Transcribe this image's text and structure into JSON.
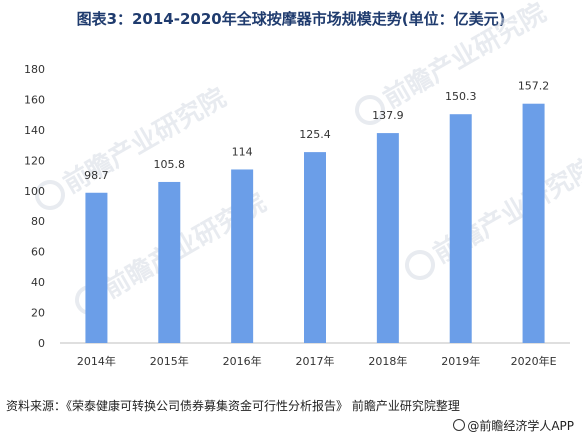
{
  "title": "图表3：2014-2020年全球按摩器市场规模走势(单位：亿美元)",
  "source": "资料来源：《荣泰健康可转换公司债券募集资金可行性分析报告》 前瞻产业研究院整理",
  "brand": "@前瞻经济学人APP",
  "watermark": "前瞻产业研究院",
  "colors": {
    "bar": "#6b9ee8",
    "title": "#1f3b6e",
    "axis": "#bfbfbf"
  },
  "chart_data": {
    "type": "bar",
    "categories": [
      "2014年",
      "2015年",
      "2016年",
      "2017年",
      "2018年",
      "2019年",
      "2020年E"
    ],
    "values": [
      98.7,
      105.8,
      114,
      125.4,
      137.9,
      150.3,
      157.2
    ],
    "value_labels": [
      "98.7",
      "105.8",
      "114",
      "125.4",
      "137.9",
      "150.3",
      "157.2"
    ],
    "yticks": [
      0,
      20,
      40,
      60,
      80,
      100,
      120,
      140,
      160,
      180
    ],
    "ylim": [
      0,
      180
    ],
    "grid": false,
    "legend": "none"
  }
}
